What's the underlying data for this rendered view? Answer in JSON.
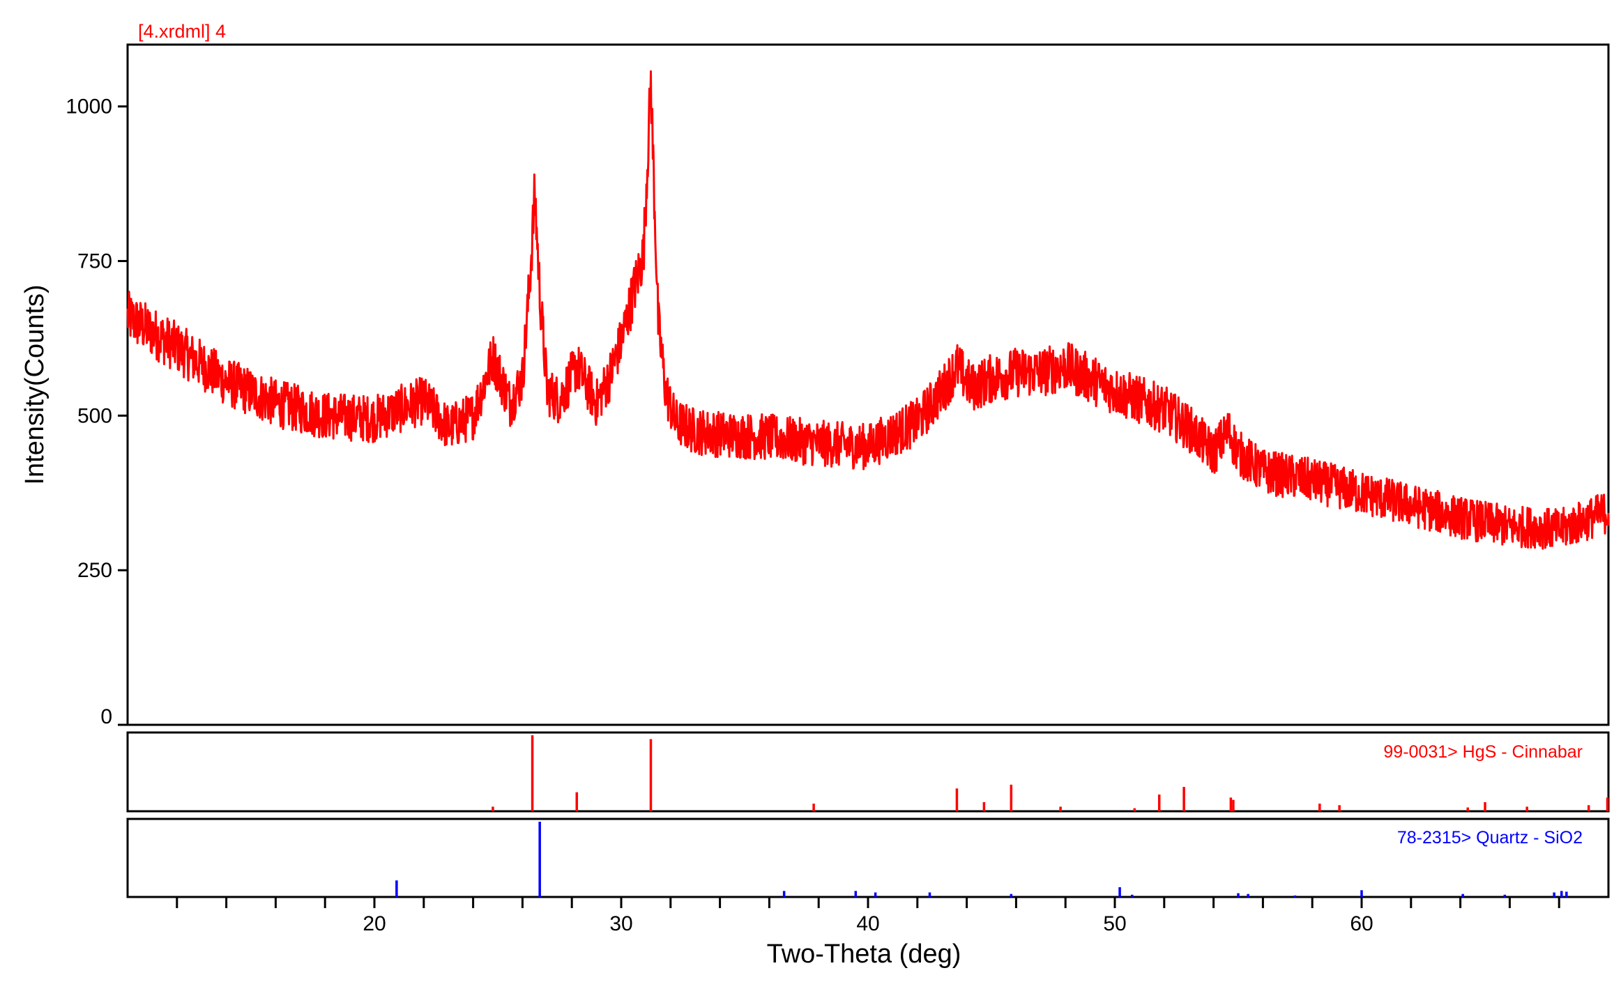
{
  "chart_data": {
    "type": "line",
    "title": "[4.xrdml] 4",
    "xlabel": "Two-Theta (deg)",
    "ylabel": "Intensity(Counts)",
    "xlim": [
      10,
      70
    ],
    "ylim": [
      0,
      1100
    ],
    "x_ticks": [
      20,
      30,
      40,
      50,
      60
    ],
    "x_tick_labels": [
      "20",
      "30",
      "40",
      "50",
      "60"
    ],
    "x_minor_tick_step": 2,
    "y_ticks": [
      0,
      250,
      500,
      750,
      1000
    ],
    "y_tick_labels": [
      "0",
      "250",
      "500",
      "750",
      "1000"
    ],
    "grid": false,
    "colors": {
      "scan": "#ff0000",
      "cinnabar": "#ff0000",
      "quartz": "#0000ff",
      "frame": "#000000"
    },
    "series": [
      {
        "name": "[4.xrdml] 4",
        "color": "#ff0000",
        "x": [
          10.0,
          12.0,
          14.0,
          16.0,
          18.0,
          20.0,
          22.0,
          23.0,
          24.0,
          24.8,
          25.5,
          26.0,
          26.3,
          26.5,
          26.7,
          27.0,
          27.5,
          28.2,
          29.0,
          29.5,
          30.0,
          30.5,
          30.9,
          31.2,
          31.5,
          31.8,
          32.2,
          33.0,
          34.0,
          36.0,
          38.0,
          40.0,
          42.0,
          43.0,
          43.6,
          44.2,
          45.0,
          46.0,
          47.0,
          48.0,
          49.0,
          50.0,
          51.0,
          52.0,
          53.0,
          54.0,
          54.6,
          55.0,
          56.0,
          58.0,
          60.0,
          62.0,
          64.0,
          66.0,
          67.0,
          68.0,
          69.0,
          70.0
        ],
        "values": [
          660,
          610,
          555,
          520,
          500,
          495,
          525,
          480,
          500,
          595,
          520,
          560,
          720,
          860,
          700,
          540,
          525,
          580,
          520,
          560,
          620,
          700,
          760,
          1040,
          650,
          540,
          490,
          475,
          470,
          465,
          455,
          450,
          490,
          540,
          580,
          545,
          560,
          570,
          570,
          580,
          560,
          540,
          525,
          510,
          480,
          440,
          475,
          440,
          410,
          395,
          375,
          355,
          335,
          320,
          320,
          315,
          330,
          345
        ]
      }
    ],
    "reference_patterns": [
      {
        "name": "99-0031> HgS - Cinnabar",
        "color": "#ff0000",
        "positions": [
          24.8,
          26.4,
          28.2,
          31.2,
          37.8,
          43.6,
          44.7,
          45.8,
          47.8,
          50.8,
          51.8,
          52.8,
          54.7,
          54.8,
          58.3,
          59.1,
          64.3,
          65.0,
          66.7,
          69.2,
          70.0
        ],
        "intensities": [
          6,
          100,
          25,
          95,
          10,
          30,
          12,
          35,
          6,
          4,
          22,
          32,
          18,
          15,
          10,
          8,
          5,
          12,
          6,
          8,
          18
        ]
      },
      {
        "name": "78-2315> Quartz - SiO2",
        "color": "#0000ff",
        "positions": [
          20.9,
          26.7,
          36.6,
          39.5,
          40.3,
          42.5,
          45.8,
          50.2,
          50.7,
          55.0,
          55.4,
          57.3,
          60.0,
          64.1,
          65.8,
          67.8,
          68.1,
          68.3
        ],
        "intensities": [
          22,
          100,
          8,
          8,
          6,
          6,
          4,
          13,
          3,
          5,
          4,
          2,
          9,
          4,
          3,
          6,
          8,
          7
        ]
      }
    ]
  }
}
